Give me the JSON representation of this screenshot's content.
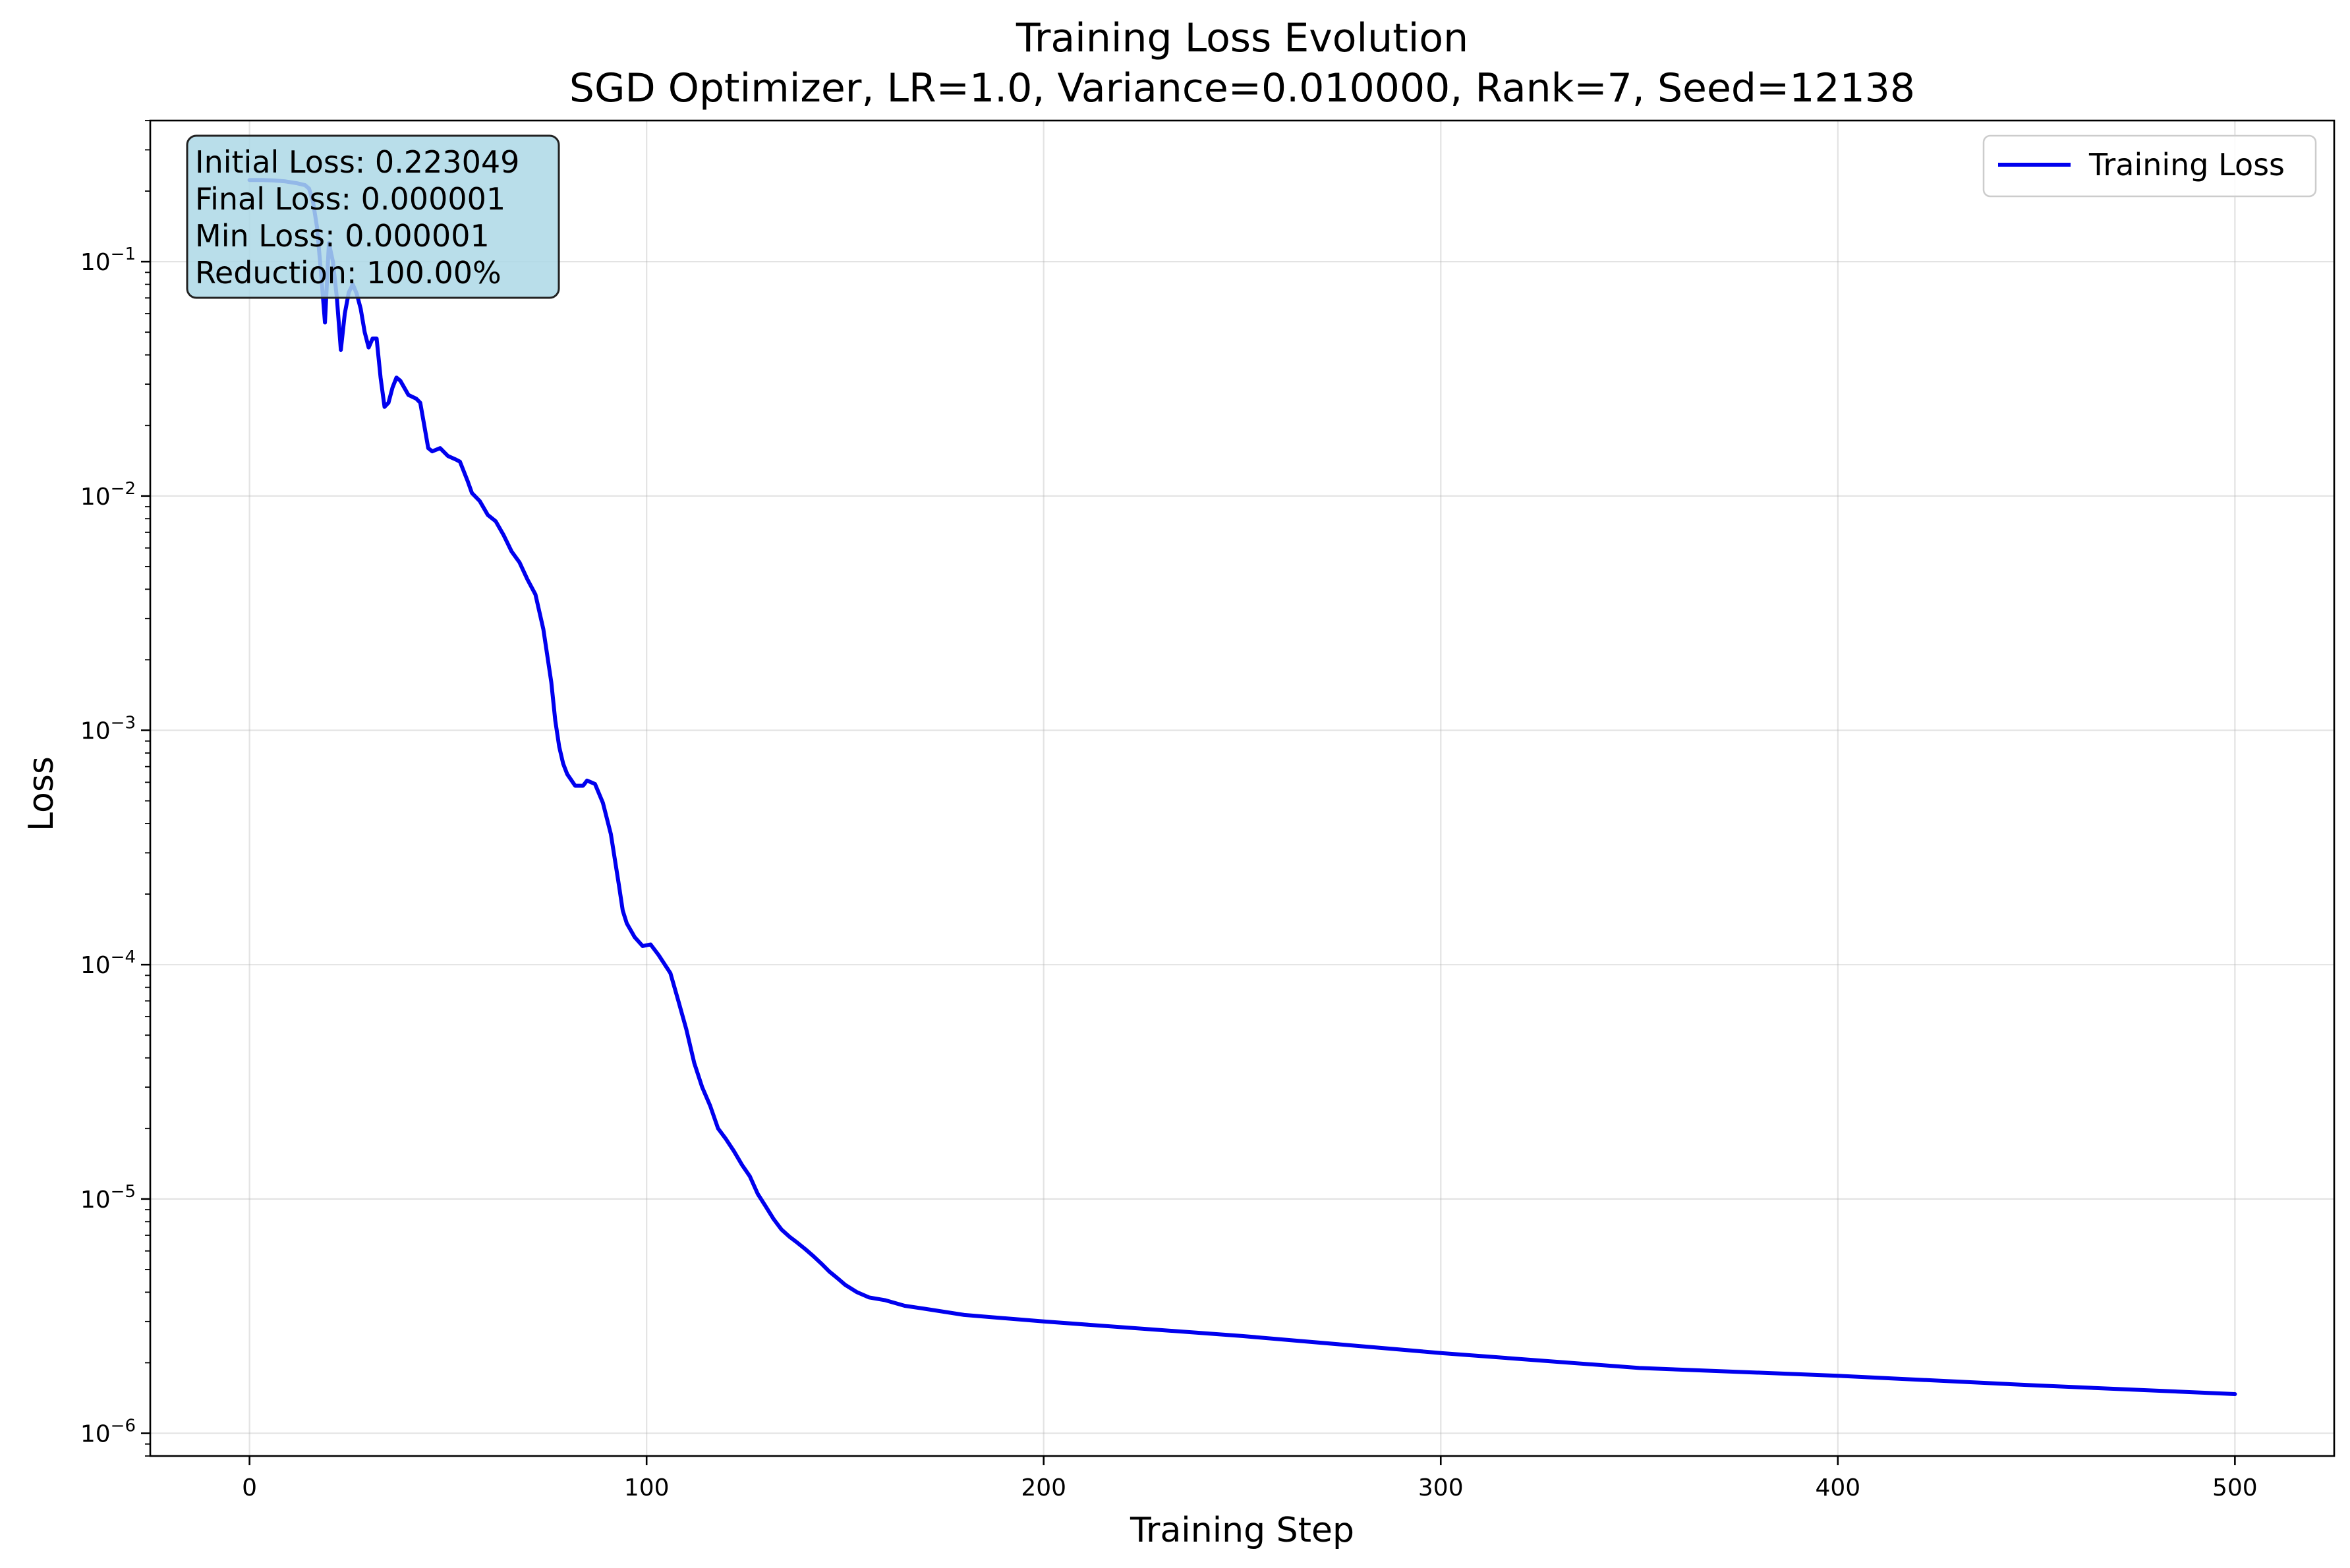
{
  "chart_data": {
    "type": "line",
    "title": "Training Loss Evolution",
    "subtitle": "SGD Optimizer, LR=1.0, Variance=0.010000, Rank=7, Seed=12138",
    "xlabel": "Training Step",
    "ylabel": "Loss",
    "xlim": [
      -25,
      525
    ],
    "ylim": [
      8e-07,
      0.4
    ],
    "y_scale": "log",
    "grid": true,
    "legend": "top-right",
    "x_ticks": [
      0,
      100,
      200,
      300,
      400,
      500
    ],
    "y_ticks": [
      {
        "exp": "-1",
        "value": 0.1
      },
      {
        "exp": "-2",
        "value": 0.01
      },
      {
        "exp": "-3",
        "value": 0.001
      },
      {
        "exp": "-4",
        "value": 0.0001
      },
      {
        "exp": "-5",
        "value": 1e-05
      },
      {
        "exp": "-6",
        "value": 1e-06
      }
    ],
    "y_tick_base": "10",
    "series": [
      {
        "name": "Training Loss",
        "color": "#0000ee",
        "points": [
          [
            0,
            0.223
          ],
          [
            3,
            0.223
          ],
          [
            6,
            0.222
          ],
          [
            9,
            0.22
          ],
          [
            12,
            0.216
          ],
          [
            14,
            0.212
          ],
          [
            15,
            0.205
          ],
          [
            16,
            0.18
          ],
          [
            17,
            0.14
          ],
          [
            18,
            0.09
          ],
          [
            19,
            0.055
          ],
          [
            20,
            0.12
          ],
          [
            21,
            0.1
          ],
          [
            22,
            0.07
          ],
          [
            23,
            0.042
          ],
          [
            24,
            0.06
          ],
          [
            25,
            0.074
          ],
          [
            26,
            0.08
          ],
          [
            27,
            0.073
          ],
          [
            28,
            0.063
          ],
          [
            29,
            0.05
          ],
          [
            30,
            0.043
          ],
          [
            31,
            0.047
          ],
          [
            32,
            0.047
          ],
          [
            33,
            0.032
          ],
          [
            34,
            0.024
          ],
          [
            35,
            0.025
          ],
          [
            36,
            0.029
          ],
          [
            37,
            0.032
          ],
          [
            38,
            0.031
          ],
          [
            40,
            0.027
          ],
          [
            42,
            0.026
          ],
          [
            43,
            0.025
          ],
          [
            44,
            0.02
          ],
          [
            45,
            0.016
          ],
          [
            46,
            0.0155
          ],
          [
            48,
            0.016
          ],
          [
            50,
            0.0148
          ],
          [
            52,
            0.0143
          ],
          [
            53,
            0.014
          ],
          [
            55,
            0.0115
          ],
          [
            56,
            0.0103
          ],
          [
            58,
            0.0095
          ],
          [
            60,
            0.0083
          ],
          [
            62,
            0.0078
          ],
          [
            64,
            0.0068
          ],
          [
            66,
            0.0058
          ],
          [
            68,
            0.0052
          ],
          [
            70,
            0.0044
          ],
          [
            72,
            0.0038
          ],
          [
            74,
            0.0027
          ],
          [
            76,
            0.0016
          ],
          [
            77,
            0.0011
          ],
          [
            78,
            0.00085
          ],
          [
            79,
            0.00072
          ],
          [
            80,
            0.00065
          ],
          [
            82,
            0.00058
          ],
          [
            84,
            0.00058
          ],
          [
            85,
            0.00061
          ],
          [
            87,
            0.00059
          ],
          [
            89,
            0.00049
          ],
          [
            91,
            0.00036
          ],
          [
            93,
            0.00022
          ],
          [
            94,
            0.00017
          ],
          [
            95,
            0.00015
          ],
          [
            97,
            0.000131
          ],
          [
            99,
            0.00012
          ],
          [
            101,
            0.000122
          ],
          [
            103,
            0.00011
          ],
          [
            106,
            9.2e-05
          ],
          [
            108,
            7e-05
          ],
          [
            110,
            5.3e-05
          ],
          [
            112,
            3.8e-05
          ],
          [
            114,
            3e-05
          ],
          [
            116,
            2.5e-05
          ],
          [
            118,
            2e-05
          ],
          [
            120,
            1.8e-05
          ],
          [
            122,
            1.6e-05
          ],
          [
            124,
            1.4e-05
          ],
          [
            126,
            1.25e-05
          ],
          [
            128,
            1.05e-05
          ],
          [
            130,
            9.3e-06
          ],
          [
            132,
            8.2e-06
          ],
          [
            134,
            7.4e-06
          ],
          [
            136,
            6.9e-06
          ],
          [
            138,
            6.5e-06
          ],
          [
            140,
            6.1e-06
          ],
          [
            142,
            5.7e-06
          ],
          [
            144,
            5.3e-06
          ],
          [
            146,
            4.9e-06
          ],
          [
            148,
            4.6e-06
          ],
          [
            150,
            4.3e-06
          ],
          [
            153,
            4e-06
          ],
          [
            156,
            3.8e-06
          ],
          [
            160,
            3.7e-06
          ],
          [
            165,
            3.5e-06
          ],
          [
            170,
            3.4e-06
          ],
          [
            180,
            3.2e-06
          ],
          [
            200,
            3e-06
          ],
          [
            250,
            2.6e-06
          ],
          [
            300,
            2.2e-06
          ],
          [
            350,
            1.9e-06
          ],
          [
            400,
            1.76e-06
          ],
          [
            450,
            1.6e-06
          ],
          [
            500,
            1.47e-06
          ]
        ]
      }
    ]
  },
  "stats_box": {
    "lines": [
      "Initial Loss: 0.223049",
      "Final Loss: 0.000001",
      "Min Loss: 0.000001",
      "Reduction: 100.00%"
    ],
    "fill": "#add8e6",
    "edge": "#222222"
  }
}
